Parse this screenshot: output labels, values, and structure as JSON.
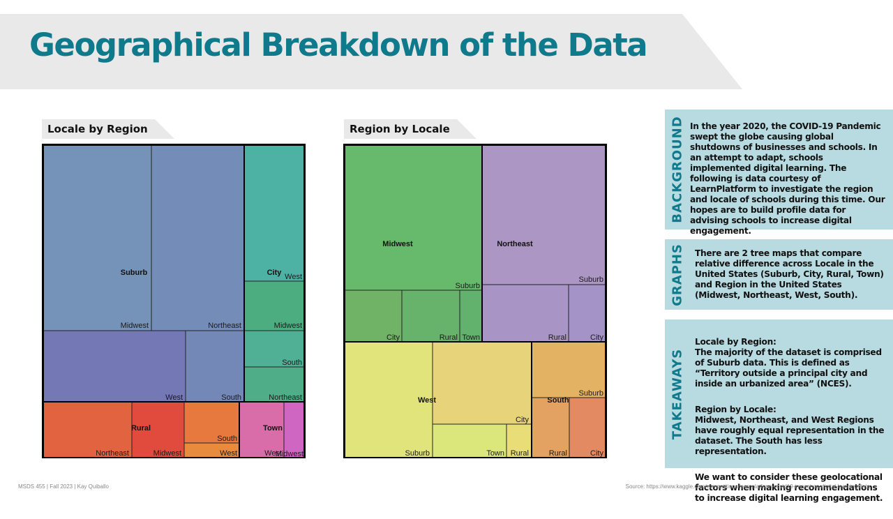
{
  "title": "Geographical Breakdown of the Data",
  "colors": {
    "title": "#0e7a8c",
    "banner": "#e9e9e9",
    "panel": "#b8dbe1",
    "tab": "#e9e9e9"
  },
  "treemaps": [
    {
      "heading": "Locale by Region"
    },
    {
      "heading": "Region by Locale"
    }
  ],
  "chart_data": [
    {
      "type": "treemap",
      "title": "Locale by Region",
      "groups": [
        {
          "name": "Suburb",
          "color": "#6f8fb7",
          "children": [
            {
              "name": "Midwest",
              "color": "#7592b8"
            },
            {
              "name": "Northeast",
              "color": "#738db8"
            },
            {
              "name": "West",
              "color": "#7479b5"
            },
            {
              "name": "South",
              "color": "#7488b8"
            }
          ]
        },
        {
          "name": "City",
          "color": "#4fb29a",
          "children": [
            {
              "name": "West",
              "color": "#4db2a3"
            },
            {
              "name": "Midwest",
              "color": "#4cae80"
            },
            {
              "name": "South",
              "color": "#4fb095"
            },
            {
              "name": "Northeast",
              "color": "#4fae87"
            }
          ]
        },
        {
          "name": "Rural",
          "color": "#e2653f",
          "children": [
            {
              "name": "Northeast",
              "color": "#e2633f"
            },
            {
              "name": "Midwest",
              "color": "#e04b3e"
            },
            {
              "name": "South",
              "color": "#e7783e"
            },
            {
              "name": "West",
              "color": "#e88b3c"
            }
          ]
        },
        {
          "name": "Town",
          "color": "#d96aa8",
          "children": [
            {
              "name": "West",
              "color": "#d86da9"
            },
            {
              "name": "Midwest",
              "color": "#cf66c2"
            }
          ]
        }
      ]
    },
    {
      "type": "treemap",
      "title": "Region by Locale",
      "groups": [
        {
          "name": "Midwest",
          "color": "#6bb76b",
          "children": [
            {
              "name": "Suburb",
              "color": "#67b96b"
            },
            {
              "name": "City",
              "color": "#70b266"
            },
            {
              "name": "Rural",
              "color": "#67b36b"
            },
            {
              "name": "Town",
              "color": "#62b16d"
            }
          ]
        },
        {
          "name": "Northeast",
          "color": "#ac96c6",
          "children": [
            {
              "name": "Suburb",
              "color": "#ac96c4"
            },
            {
              "name": "Rural",
              "color": "#a994c6"
            },
            {
              "name": "City",
              "color": "#a393c6"
            }
          ]
        },
        {
          "name": "West",
          "color": "#e0e27a",
          "children": [
            {
              "name": "Suburb",
              "color": "#e1e47a"
            },
            {
              "name": "City",
              "color": "#e7d47a"
            },
            {
              "name": "Town",
              "color": "#dbe77a"
            },
            {
              "name": "Rural",
              "color": "#e9dd78"
            }
          ]
        },
        {
          "name": "South",
          "color": "#e3a65f",
          "children": [
            {
              "name": "Suburb",
              "color": "#e3b363"
            },
            {
              "name": "Rural",
              "color": "#e3a262"
            },
            {
              "name": "City",
              "color": "#e48a62"
            }
          ]
        }
      ]
    }
  ],
  "panels": [
    {
      "tag": "BACKGROUND",
      "paragraphs": [
        "In the year 2020, the COVID-19 Pandemic swept the globe causing global shutdowns of businesses and schools. In an attempt to adapt, schools implemented digital learning. The following is data courtesy of LearnPlatform to investigate the region and locale of schools during this time. Our hopes are to build profile data for advising schools to increase digital engagement."
      ]
    },
    {
      "tag": "GRAPHS",
      "paragraphs": [
        "There are 2 tree maps that compare relative difference across Locale in the United States (Suburb, City, Rural, Town) and Region in the United States (Midwest, Northeast, West, South)."
      ]
    },
    {
      "tag": "TAKEAWAYS",
      "paragraphs": [
        "Locale by Region:\nThe majority of the dataset is comprised of Suburb data. This is defined as “Territory outside a principal city and inside an urbanized area” (NCES).",
        "Region by Locale:\nMidwest, Northeast, and West Regions have roughly equal representation in the dataset. The South has less representation.",
        "We want to consider these geolocational factors when making recommendations to increase digital learning engagement."
      ]
    }
  ],
  "footer": {
    "left": "MSDS 455 | Fall 2023 | Kay Quiballo",
    "right": "Source: https://www.kaggle.com/competitions/learnplatform-covid19-impact-on-digital-learning/data"
  }
}
